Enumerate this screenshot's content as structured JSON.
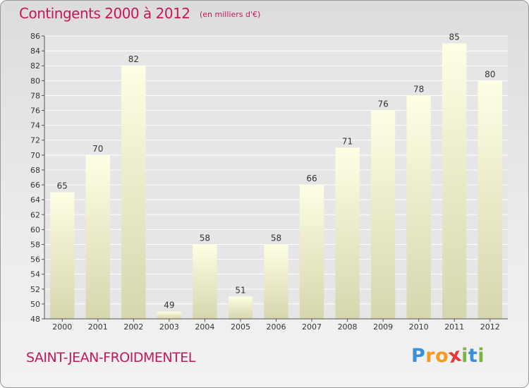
{
  "header": {
    "title": "Contingents 2000 à 2012",
    "subtitle": "(en milliers d'€)"
  },
  "footer": {
    "commune": "SAINT-JEAN-FROIDMENTEL",
    "logo_letters": [
      "P",
      "r",
      "o",
      "x",
      "i",
      "t",
      "i"
    ],
    "logo_colors": [
      "#3a8fd9",
      "#f29b1d",
      "#f29b1d",
      "#e53935",
      "#7cb342",
      "#3a8fd9",
      "#7cb342"
    ]
  },
  "colors": {
    "bar_top": "#fefee4",
    "bar_bottom": "#d6d6ae",
    "title": "#c2185b",
    "grid": "#ffffff"
  },
  "chart_data": {
    "type": "bar",
    "categories": [
      "2000",
      "2001",
      "2002",
      "2003",
      "2004",
      "2005",
      "2006",
      "2007",
      "2008",
      "2009",
      "2010",
      "2011",
      "2012"
    ],
    "values": [
      65,
      70,
      82,
      49,
      58,
      51,
      58,
      66,
      71,
      76,
      78,
      85,
      80
    ],
    "title": "Contingents 2000 à 2012",
    "subtitle": "(en milliers d'€)",
    "xlabel": "",
    "ylabel": "",
    "ylim": [
      48,
      86
    ],
    "yticks": [
      48,
      50,
      52,
      54,
      56,
      58,
      60,
      62,
      64,
      66,
      68,
      70,
      72,
      74,
      76,
      78,
      80,
      82,
      84,
      86
    ],
    "grid": true
  }
}
